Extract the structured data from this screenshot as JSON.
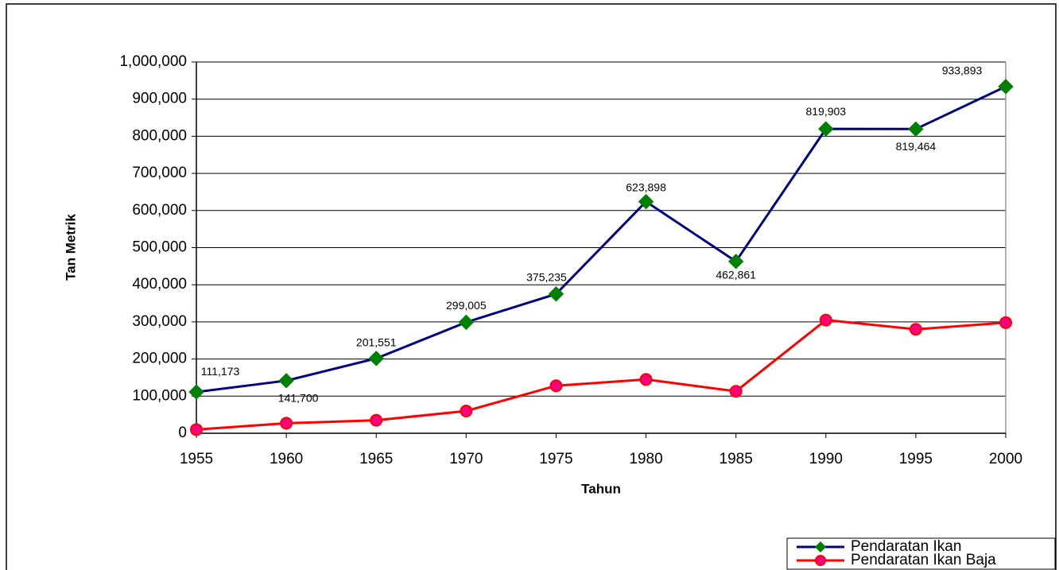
{
  "chart_data": {
    "type": "line",
    "x_label": "Tahun",
    "y_label": "Tan Metrik",
    "x": [
      1955,
      1960,
      1965,
      1970,
      1975,
      1980,
      1985,
      1990,
      1995,
      2000
    ],
    "xlim": [
      1955,
      2000
    ],
    "xticks": [
      1955,
      1960,
      1965,
      1970,
      1975,
      1980,
      1985,
      1990,
      1995,
      2000
    ],
    "ylim": [
      0,
      1000000
    ],
    "yticks": [
      0,
      {
        "value": 100000,
        "label": "100,000"
      },
      {
        "value": 200000,
        "label": "200,000"
      },
      {
        "value": 300000,
        "label": "300,000"
      },
      {
        "value": 400000,
        "label": "400,000"
      },
      {
        "value": 500000,
        "label": "500,000"
      },
      {
        "value": 600000,
        "label": "600,000"
      },
      {
        "value": 700000,
        "label": "700,000"
      },
      {
        "value": 800000,
        "label": "800,000"
      },
      {
        "value": 900000,
        "label": "900,000"
      },
      {
        "value": 1000000,
        "label": "1,000,000"
      }
    ],
    "grid": true,
    "legend": "lower right",
    "series": [
      {
        "name": "Pendaratan Ikan",
        "color": "#000080",
        "marker": "diamond",
        "marker_color": "#008000",
        "values": [
          111173,
          141700,
          201551,
          299005,
          375235,
          623898,
          462861,
          819903,
          819464,
          933893
        ],
        "value_labels": [
          "111,173",
          "141,700",
          "201,551",
          "299,005",
          "375,235",
          "623,898",
          "462,861",
          "819,903",
          "819,464",
          "933,893"
        ]
      },
      {
        "name": "Pendaratan Ikan Baja",
        "color": "#ff0000",
        "marker": "circle",
        "marker_color": "#ff0080",
        "values": [
          10000,
          27000,
          35000,
          60000,
          128000,
          145000,
          113000,
          305000,
          280000,
          298000
        ]
      }
    ]
  }
}
